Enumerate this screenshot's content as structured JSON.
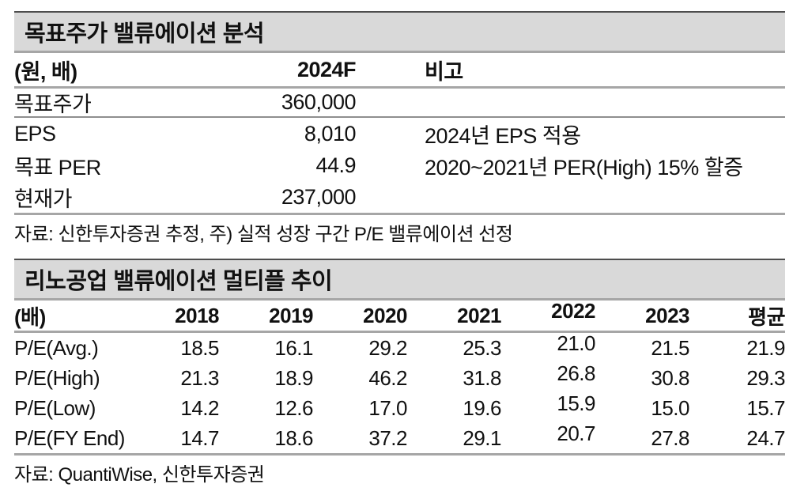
{
  "colors": {
    "title_bar_bg": "#d9d9d9",
    "rule_gray": "#a6a6a6",
    "row_separator": "#8f8f8f",
    "title_top_border": "#4d4d4d",
    "text": "#111111"
  },
  "table1": {
    "title": "목표주가 밸류에이션 분석",
    "columns": {
      "unit": "(원, 배)",
      "year": "2024F",
      "note": "비고"
    },
    "rows": [
      {
        "label": "목표주가",
        "value": "360,000",
        "note": ""
      },
      {
        "label": "EPS",
        "value": "8,010",
        "note": "2024년 EPS 적용"
      },
      {
        "label": "목표 PER",
        "value": "44.9",
        "note": "2020~2021년 PER(High) 15% 할증"
      },
      {
        "label": "현재가",
        "value": "237,000",
        "note": ""
      }
    ],
    "source": "자료: 신한투자증권 추정, 주) 실적 성장 구간 P/E 밸류에이션 선정"
  },
  "table2": {
    "title": "리노공업 밸류에이션 멀티플 추이",
    "unit_label": "(배)",
    "columns": [
      "2018",
      "2019",
      "2020",
      "2021",
      "2022",
      "2023",
      "평균"
    ],
    "rows": [
      {
        "label": "P/E(Avg.)",
        "values": [
          "18.5",
          "16.1",
          "29.2",
          "25.3",
          "21.0",
          "21.5",
          "21.9"
        ]
      },
      {
        "label": "P/E(High)",
        "values": [
          "21.3",
          "18.9",
          "46.2",
          "31.8",
          "26.8",
          "30.8",
          "29.3"
        ]
      },
      {
        "label": "P/E(Low)",
        "values": [
          "14.2",
          "12.6",
          "17.0",
          "19.6",
          "15.9",
          "15.0",
          "15.7"
        ]
      },
      {
        "label": "P/E(FY End)",
        "values": [
          "14.7",
          "18.6",
          "37.2",
          "29.1",
          "20.7",
          "27.8",
          "24.7"
        ]
      }
    ],
    "source": "자료: QuantiWise, 신한투자증권"
  }
}
